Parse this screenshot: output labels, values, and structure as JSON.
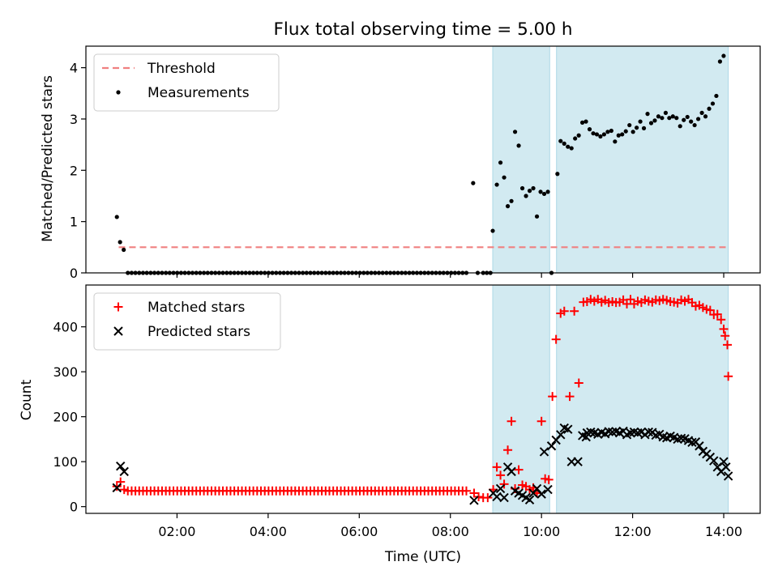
{
  "chart_data": {
    "title": "Flux total observing time = 5.00 h",
    "xlabel": "Time (UTC)",
    "x_unit": "hours UTC",
    "xlim": [
      0.0,
      14.8
    ],
    "xticks": [
      {
        "value": 2,
        "label": "02:00"
      },
      {
        "value": 4,
        "label": "04:00"
      },
      {
        "value": 6,
        "label": "06:00"
      },
      {
        "value": 8,
        "label": "08:00"
      },
      {
        "value": 10,
        "label": "10:00"
      },
      {
        "value": 12,
        "label": "12:00"
      },
      {
        "value": 14,
        "label": "14:00"
      }
    ],
    "shaded_intervals": [
      [
        8.93,
        10.18
      ],
      [
        10.33,
        14.1
      ]
    ],
    "shade_color": "#add8e6",
    "panels": [
      {
        "type": "scatter",
        "ylabel": "Matched/Predicted stars",
        "ylim": [
          0,
          4.42
        ],
        "yticks": [
          0,
          1,
          2,
          3,
          4
        ],
        "legend_position": "top-left",
        "threshold": {
          "name": "Threshold",
          "value": 0.5,
          "x_range": [
            0.72,
            14.1
          ],
          "color": "#f08080"
        },
        "series": [
          {
            "name": "Measurements",
            "marker": "dot",
            "color": "#000000",
            "note_x_from": 0.68,
            "note_x_to": 14.1
          }
        ]
      },
      {
        "type": "scatter",
        "ylabel": "Count",
        "ylim": [
          -15,
          493
        ],
        "yticks": [
          0,
          100,
          200,
          300,
          400
        ],
        "legend_position": "top-left",
        "series": [
          {
            "name": "Matched stars",
            "marker": "plus",
            "color": "#ff0000"
          },
          {
            "name": "Predicted stars",
            "marker": "x",
            "color": "#000000"
          }
        ]
      }
    ]
  }
}
